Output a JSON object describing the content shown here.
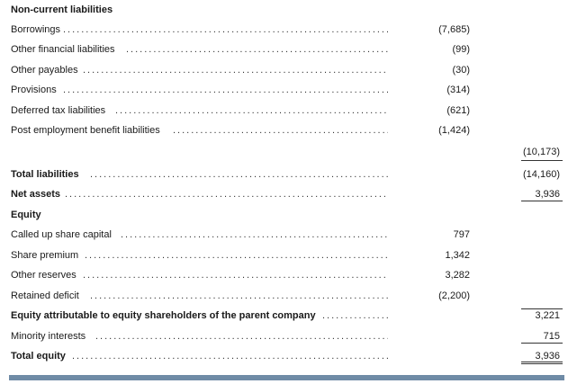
{
  "sections": {
    "noncurrent_heading": "Non-current liabilities",
    "equity_heading": "Equity"
  },
  "rows": {
    "borrowings": {
      "label": "Borrowings",
      "mid": "(7,685)"
    },
    "other_fin": {
      "label": "Other financial liabilities",
      "mid": "(99)"
    },
    "other_pay": {
      "label": "Other payables",
      "mid": "(30)"
    },
    "provisions": {
      "label": "Provisions",
      "mid": "(314)"
    },
    "deferred_tax": {
      "label": "Deferred tax liabilities",
      "mid": "(621)"
    },
    "post_emp": {
      "label": "Post employment benefit liabilities",
      "mid": "(1,424)"
    },
    "noncurrent_total": {
      "total": "(10,173)"
    },
    "total_liab": {
      "label": "Total liabilities",
      "total": "(14,160)"
    },
    "net_assets": {
      "label": "Net assets",
      "total": "3,936"
    },
    "called_up": {
      "label": "Called up share capital",
      "mid": "797"
    },
    "share_premium": {
      "label": "Share premium",
      "mid": "1,342"
    },
    "other_reserves": {
      "label": "Other reserves",
      "mid": "3,282"
    },
    "retained_deficit": {
      "label": "Retained deficit",
      "mid": "(2,200)"
    },
    "equity_attr": {
      "label": "Equity attributable to equity shareholders of the parent company",
      "total": "3,221"
    },
    "minority": {
      "label": "Minority interests",
      "total": "715"
    },
    "total_equity": {
      "label": "Total equity",
      "total": "3,936"
    }
  }
}
